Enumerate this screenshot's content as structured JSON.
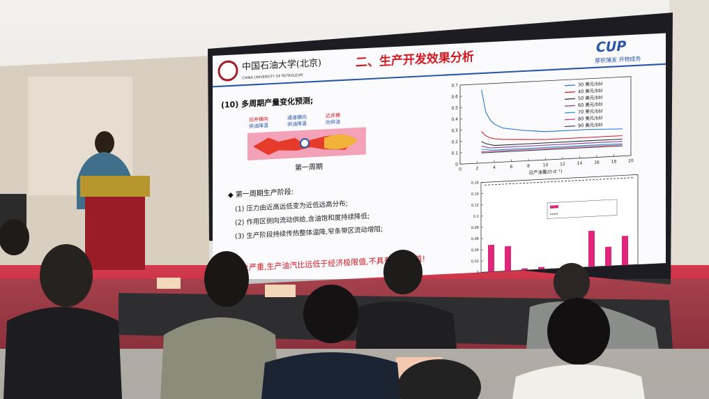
{
  "header": {
    "school_cn": "中国石油大学(北京)",
    "school_en": "CHINA UNIVERSITY OF PETROLEUM",
    "title": "二、生产开发效果分析",
    "brand": "CUP",
    "motto": "厚积薄发 开物成务"
  },
  "body": {
    "heading": "(10) 多周期产量变化预测;",
    "diagram_labels": [
      [
        "远井横向",
        "供油降温"
      ],
      [
        "通道横向",
        "供油降温"
      ],
      [
        "近井横",
        "向供油"
      ]
    ],
    "diagram_caption": "第一周期",
    "stage_title": "◆ 第一周期生产阶段:",
    "points": [
      "(1) 压力由近高远低变为近低远高分布;",
      "(2) 作用区侧向流动供给,含油饱和度持续降低;",
      "(3) 生产阶段持续传热整体温降,窄条带区流动增阻;"
    ],
    "conclusion": "现象严重,生产油汽比远低于经济极限值,不具有开发价值!"
  },
  "line_chart": {
    "xlabel": "日产油量/(t·d⁻¹)",
    "xticks": [
      0,
      2,
      4,
      6,
      8,
      10,
      12,
      14,
      16,
      18,
      20
    ],
    "yticks": [
      0,
      0.1,
      0.2,
      0.3,
      0.4,
      0.5,
      0.6,
      0.7
    ],
    "legend": [
      "30 美元/bbl",
      "40 美元/bbl",
      "50 美元/bbl",
      "60 美元/bbl",
      "70 美元/bbl",
      "80 美元/bbl",
      "90 美元/bbl"
    ]
  },
  "bar_chart": {
    "yticks": [
      0,
      0.02,
      0.04,
      0.06,
      0.08,
      0.1,
      0.12,
      0.14,
      0.16
    ]
  }
}
